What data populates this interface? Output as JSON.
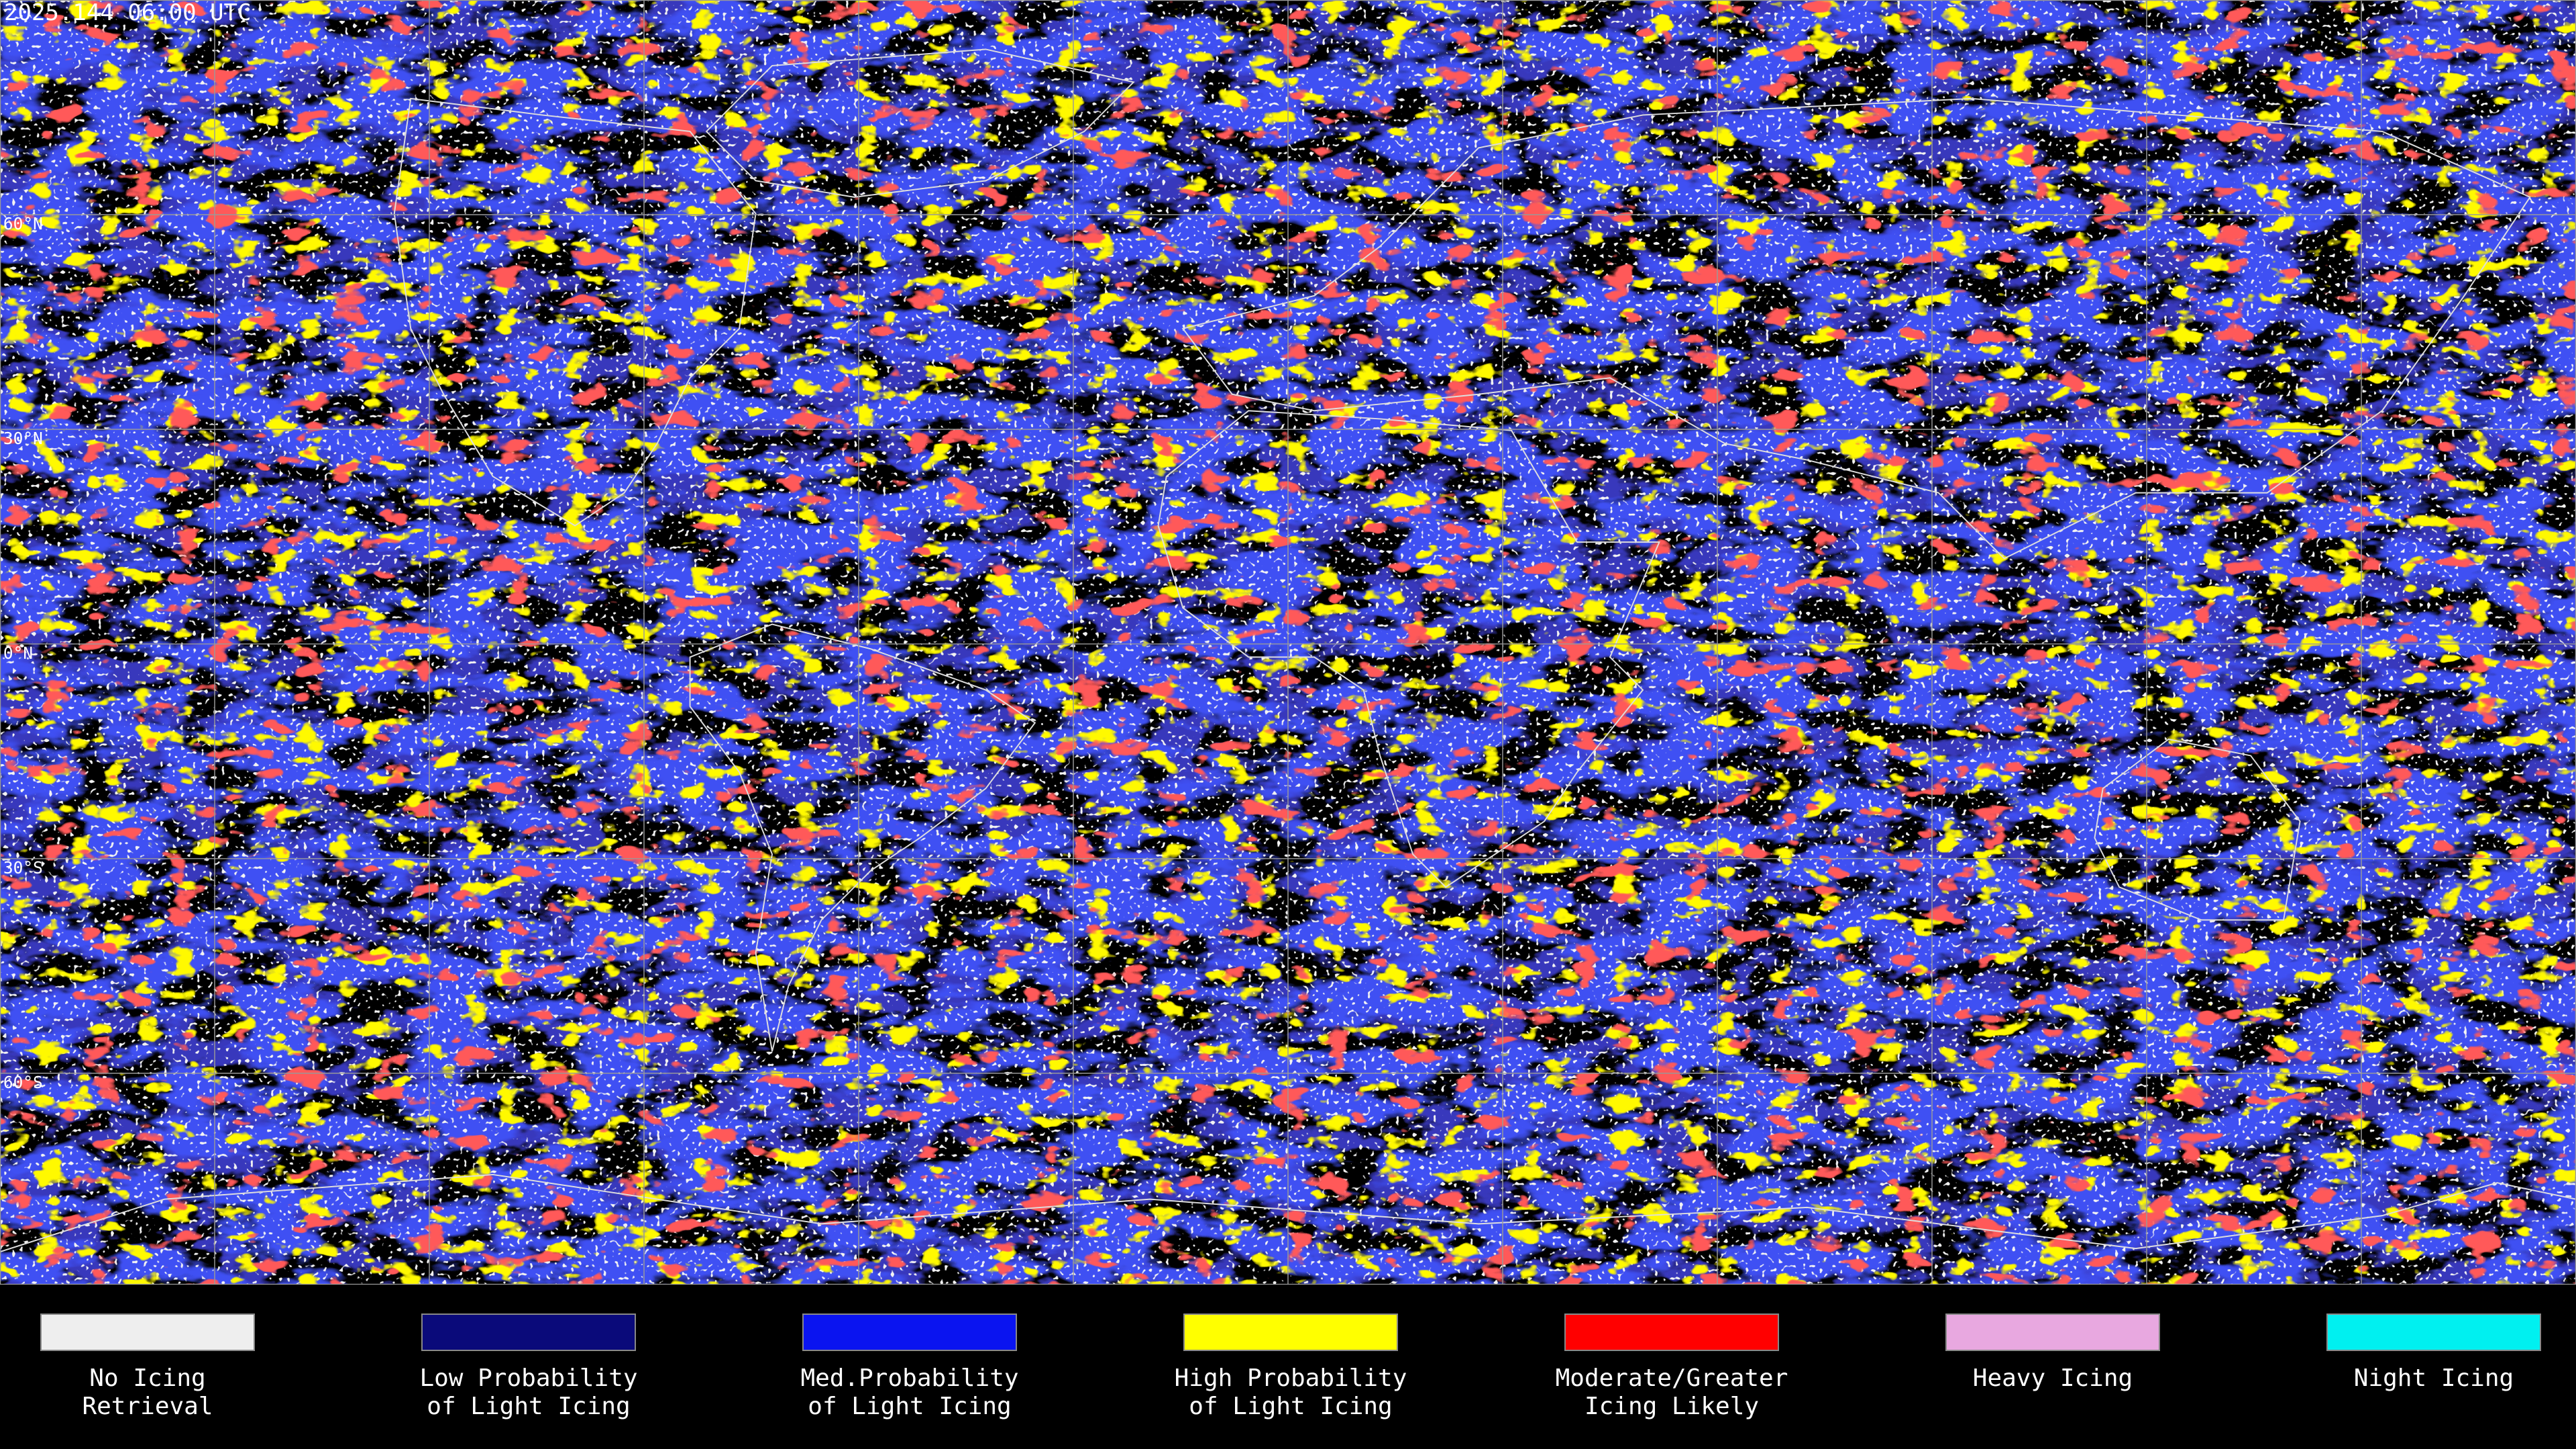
{
  "header": {
    "title": "2025.144 06:00 UTC"
  },
  "map": {
    "latitude_labels": [
      "60°N",
      "30°N",
      "0°N",
      "30°S",
      "60°S"
    ]
  },
  "legend": [
    {
      "label_lines": [
        "No Icing",
        "Retrieval"
      ],
      "color": "#eeeeee"
    },
    {
      "label_lines": [
        "Low Probability",
        "of Light Icing"
      ],
      "color": "#0a0a7a"
    },
    {
      "label_lines": [
        "Med.Probability",
        "of Light Icing"
      ],
      "color": "#0a14f0"
    },
    {
      "label_lines": [
        "High Probability",
        "of Light Icing"
      ],
      "color": "#ffff00"
    },
    {
      "label_lines": [
        "Moderate/Greater",
        "Icing Likely"
      ],
      "color": "#ff0000"
    },
    {
      "label_lines": [
        "Heavy Icing"
      ],
      "color": "#e8a8e0"
    },
    {
      "label_lines": [
        "Night Icing"
      ],
      "color": "#00f0f0"
    }
  ]
}
